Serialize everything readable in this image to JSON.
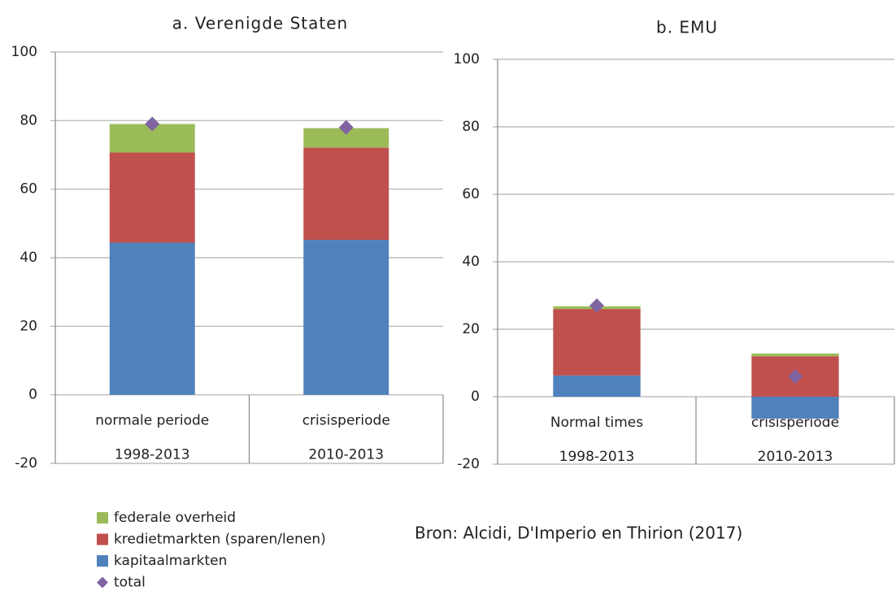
{
  "chart_data": [
    {
      "type": "bar",
      "stacked": true,
      "title": "a. Verenigde Staten",
      "categories": [
        [
          "normale periode",
          "1998-2013"
        ],
        [
          "crisisperiode",
          "2010-2013"
        ]
      ],
      "series": [
        {
          "name": "kapitaalmarkten",
          "color": "#4f81bd",
          "values": [
            44.4,
            45.2
          ]
        },
        {
          "name": "kredietmarkten (sparen/lenen)",
          "color": "#c0504d",
          "values": [
            26.3,
            26.9
          ]
        },
        {
          "name": "federale overheid",
          "color": "#9bbb59",
          "values": [
            8.3,
            5.7
          ]
        },
        {
          "name": "total",
          "color": "#8064a2",
          "marker": "diamond",
          "values": [
            79,
            78
          ]
        }
      ],
      "ylim": [
        -20,
        100
      ],
      "yticks": [
        -20,
        0,
        20,
        40,
        60,
        80,
        100
      ],
      "grid": true
    },
    {
      "type": "bar",
      "stacked": true,
      "title": "b. EMU",
      "categories": [
        [
          "Normal times",
          "1998-2013"
        ],
        [
          "crisisperiode",
          "2010-2013"
        ]
      ],
      "series": [
        {
          "name": "kapitaalmarkten",
          "color": "#4f81bd",
          "values": [
            6.3,
            -6.5
          ]
        },
        {
          "name": "kredietmarkten (sparen/lenen)",
          "color": "#c0504d",
          "values": [
            19.7,
            12
          ]
        },
        {
          "name": "federale overheid",
          "color": "#9bbb59",
          "values": [
            0.8,
            0.8
          ]
        },
        {
          "name": "total",
          "color": "#8064a2",
          "marker": "diamond",
          "values": [
            27,
            6
          ]
        }
      ],
      "ylim": [
        -20,
        100
      ],
      "yticks": [
        -20,
        0,
        20,
        40,
        60,
        80,
        100
      ],
      "grid": true
    }
  ],
  "source": "Bron: Alcidi, D'Imperio en Thirion (2017)"
}
